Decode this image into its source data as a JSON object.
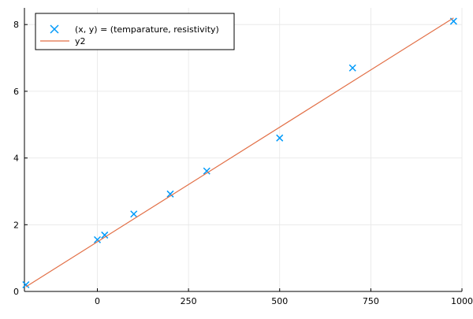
{
  "chart_data": {
    "type": "scatter",
    "title": "",
    "xlabel": "",
    "ylabel": "",
    "xlim": [
      -200,
      1000
    ],
    "ylim": [
      0,
      8.5
    ],
    "x_ticks": [
      0,
      250,
      500,
      750,
      1000
    ],
    "y_ticks": [
      0,
      2,
      4,
      6,
      8
    ],
    "x_tick_labels": [
      "0",
      "250",
      "500",
      "750",
      "1000"
    ],
    "y_tick_labels": [
      "0",
      "2",
      "4",
      "6",
      "8"
    ],
    "grid": true,
    "legend_position": "top-left",
    "series": [
      {
        "name": "(x, y) = (temparature, resistivity)",
        "type": "scatter",
        "marker": "x",
        "color": "#009AFA",
        "x": [
          -196,
          0,
          20,
          100,
          200,
          300,
          500,
          700,
          977
        ],
        "y": [
          0.2,
          1.55,
          1.69,
          2.32,
          2.92,
          3.61,
          4.6,
          6.7,
          8.1
        ]
      },
      {
        "name": "y2",
        "type": "line",
        "color": "#E26F46",
        "x": [
          -196,
          977
        ],
        "y": [
          0.14,
          8.2
        ]
      }
    ]
  }
}
